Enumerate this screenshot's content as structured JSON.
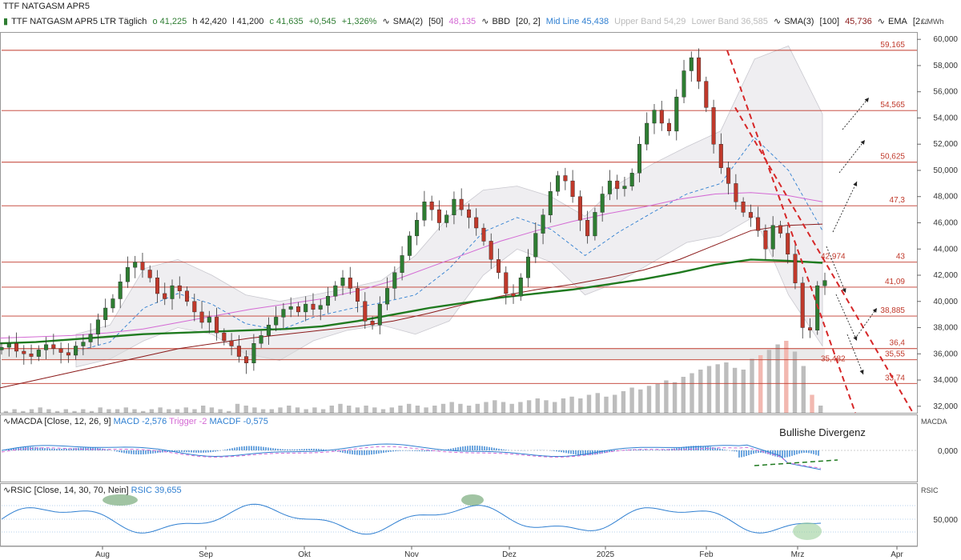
{
  "header": {
    "title": "TTF NATGASM APR5",
    "instrument": "TTF NATGASM APR5 LTR Täglich",
    "o": "o 41,225",
    "h": "h 42,420",
    "l": "l 41,200",
    "c": "c 41,635",
    "chg": "+0,545",
    "chg_pct": "+1,326%",
    "sma2_label": "SMA(2)",
    "sma2_param": "[50]",
    "sma2_val": "48,135",
    "bbd_label": "BBD",
    "bbd_param": "[20, 2]",
    "mid_line": "Mid Line 45,438",
    "upper_band": "Upper Band 54,29",
    "lower_band": "Lower Band 36,585",
    "sma3_label": "SMA(3)",
    "sma3_param": "[100]",
    "sma3_val": "45,736",
    "ema_label": "EMA",
    "ema_trunc": "[2..."
  },
  "unit_label": "€/MWh",
  "macd": {
    "label": "MACDA",
    "params": "[Close, 12, 26, 9]",
    "macd": "MACD -2,576",
    "trigger": "Trigger -2",
    "macdf": "MACDF -0,575",
    "axis_label": "MACDA",
    "zero": "0,000",
    "annotation": "Bullishe Divergenz"
  },
  "rsi": {
    "label": "RSIC",
    "params": "[Close, 14, 30, 70, Nein]",
    "value": "RSIC 39,655",
    "axis_label": "RSIC",
    "fifty": "50,000"
  },
  "colors": {
    "up": "#2e7d32",
    "down": "#c0392b",
    "sma50": "#d46ad4",
    "sma100": "#8b1a1a",
    "ema200": "#1f7a1f",
    "bb_mid": "#2f7fd1",
    "level": "#c0392b",
    "macd": "#2f7fd1",
    "trigger": "#d46ad4"
  },
  "chart_data": {
    "type": "candlestick",
    "y_range": [
      31.5,
      60.5
    ],
    "y_ticks": [
      32,
      34,
      36,
      38,
      40,
      42,
      44,
      46,
      48,
      50,
      52,
      54,
      56,
      58,
      60
    ],
    "y_tick_labels": [
      "32,000",
      "34,000",
      "36,000",
      "38,000",
      "40,000",
      "42,000",
      "44,000",
      "46,000",
      "48,000",
      "50,000",
      "52,000",
      "54,000",
      "56,000",
      "58,000",
      "60,000"
    ],
    "x_tick_labels": [
      "Aug",
      "Sep",
      "Okt",
      "Nov",
      "Dez",
      "2025",
      "Feb",
      "Mrz",
      "Apr"
    ],
    "levels": [
      {
        "value": 59.165,
        "label": "59,165"
      },
      {
        "value": 54.565,
        "label": "54,565"
      },
      {
        "value": 50.625,
        "label": "50,625"
      },
      {
        "value": 47.3,
        "label": "47,3"
      },
      {
        "value": 43,
        "label": "43"
      },
      {
        "value": 41.09,
        "label": "41,09"
      },
      {
        "value": 38.885,
        "label": "38,885"
      },
      {
        "value": 36.4,
        "label": "36,4"
      },
      {
        "value": 35.55,
        "label": "35,55"
      },
      {
        "value": 33.74,
        "label": "33,74"
      }
    ],
    "trendline_labels": [
      "42,974",
      "35,482"
    ],
    "close_path": [
      36.5,
      36.8,
      36.2,
      36.0,
      35.8,
      36.3,
      36.7,
      36.4,
      36.1,
      35.9,
      36.6,
      36.9,
      37.5,
      38.6,
      39.5,
      40.2,
      41.5,
      42.6,
      43.0,
      42.4,
      41.8,
      40.6,
      40.2,
      41.2,
      40.8,
      40.0,
      39.2,
      38.4,
      38.8,
      37.6,
      37.0,
      36.6,
      35.8,
      35.3,
      36.8,
      37.4,
      38.2,
      38.8,
      39.4,
      39.6,
      39.2,
      39.8,
      39.4,
      39.7,
      40.4,
      41.2,
      41.8,
      41.0,
      40.0,
      38.5,
      38.2,
      39.8,
      41.0,
      42.2,
      43.5,
      45.0,
      46.2,
      47.6,
      47.0,
      46.0,
      46.6,
      47.8,
      47.0,
      46.4,
      45.6,
      44.6,
      43.2,
      42.2,
      40.6,
      40.4,
      41.8,
      43.4,
      45.2,
      46.6,
      48.4,
      49.6,
      49.2,
      48.0,
      46.2,
      45.0,
      46.8,
      48.2,
      49.2,
      48.6,
      48.8,
      49.8,
      52.0,
      53.6,
      54.6,
      53.6,
      53.0,
      55.6,
      57.6,
      58.6,
      56.8,
      54.8,
      52.0,
      50.2,
      49.0,
      47.6,
      46.8,
      46.4,
      45.4,
      44.0,
      45.8,
      45.2,
      43.6,
      41.4,
      38.0,
      37.8,
      41.2,
      41.6
    ],
    "sma50_path": [
      37.2,
      37.3,
      37.4,
      37.6,
      37.9,
      38.4,
      38.9,
      39.4,
      39.8,
      40.2,
      40.8,
      41.6,
      42.6,
      43.6,
      44.6,
      45.4,
      46.1,
      46.7,
      47.2,
      47.8,
      48.2,
      48.3,
      48.1,
      47.6
    ],
    "sma100_path": [
      33.4,
      34.0,
      34.6,
      35.2,
      35.8,
      36.4,
      36.8,
      37.2,
      37.5,
      37.8,
      38.1,
      38.5,
      39.1,
      39.8,
      40.4,
      40.9,
      41.3,
      41.8,
      42.4,
      43.2,
      44.3,
      45.4,
      45.8,
      45.9
    ],
    "ema200_path": [
      36.8,
      36.9,
      37.1,
      37.3,
      37.5,
      37.6,
      37.7,
      37.8,
      37.9,
      38.1,
      38.5,
      39.0,
      39.5,
      39.9,
      40.3,
      40.6,
      40.9,
      41.3,
      41.7,
      42.2,
      42.8,
      43.2,
      43.1,
      42.95
    ],
    "bb_upper_path": [
      37.5,
      38.2,
      42.5,
      43.2,
      42.0,
      40.5,
      40.0,
      40.5,
      41.0,
      41.6,
      43.5,
      46.5,
      48.5,
      48.8,
      48.0,
      46.5,
      49.0,
      50.5,
      51.8,
      53.0,
      58.5,
      59.5,
      54.3
    ],
    "bb_lower_path": [
      35.0,
      35.6,
      37.0,
      38.0,
      37.5,
      36.0,
      35.5,
      37.0,
      37.8,
      38.2,
      37.5,
      38.5,
      42.0,
      44.0,
      43.0,
      40.5,
      41.5,
      43.0,
      44.5,
      45.0,
      46.5,
      40.5,
      36.6
    ],
    "bb_mid_path": [
      36.2,
      36.9,
      39.5,
      40.6,
      39.8,
      38.3,
      37.8,
      38.8,
      39.4,
      39.9,
      40.5,
      42.5,
      45.3,
      46.4,
      45.5,
      43.5,
      45.3,
      46.8,
      48.2,
      49.0,
      52.5,
      50.0,
      45.4
    ],
    "volume": [
      1,
      2,
      1,
      2,
      3,
      2,
      1,
      2,
      1,
      2,
      1,
      3,
      2,
      2,
      3,
      2,
      1,
      2,
      3,
      2,
      2,
      3,
      2,
      4,
      3,
      2,
      1,
      5,
      4,
      3,
      2,
      2,
      3,
      4,
      3,
      2,
      3,
      2,
      4,
      5,
      4,
      3,
      4,
      3,
      2,
      3,
      4,
      5,
      4,
      3,
      4,
      5,
      6,
      5,
      4,
      5,
      6,
      7,
      6,
      5,
      6,
      7,
      8,
      7,
      6,
      8,
      9,
      8,
      10,
      11,
      9,
      10,
      12,
      14,
      13,
      15,
      16,
      18,
      17,
      20,
      22,
      24,
      26,
      27,
      28,
      25,
      24,
      30,
      32,
      35,
      38,
      40,
      34,
      26,
      10,
      4
    ]
  }
}
